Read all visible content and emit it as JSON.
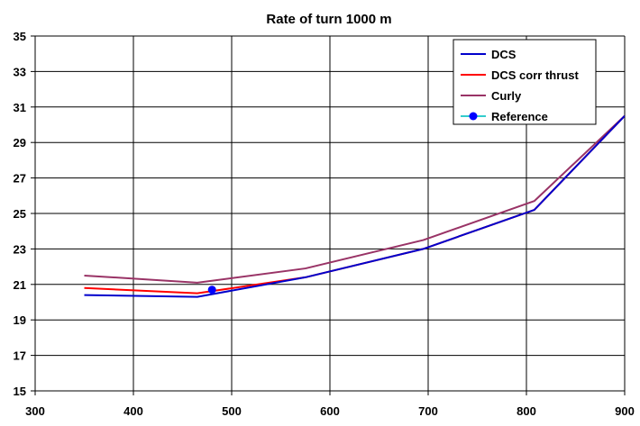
{
  "chart_data": {
    "type": "line",
    "title": "Rate of turn 1000 m",
    "xlabel": "",
    "ylabel": "",
    "xlim": [
      300,
      900
    ],
    "ylim": [
      15,
      35
    ],
    "x_ticks": [
      300,
      400,
      500,
      600,
      700,
      800,
      900
    ],
    "y_ticks": [
      15,
      17,
      19,
      21,
      23,
      25,
      27,
      29,
      31,
      33,
      35
    ],
    "grid": true,
    "legend_position": "top-right",
    "series": [
      {
        "name": "DCS",
        "color": "#0000cc",
        "marker": "none",
        "points": [
          [
            350,
            20.4
          ],
          [
            465,
            20.3
          ],
          [
            575,
            21.4
          ],
          [
            695,
            23.0
          ],
          [
            808,
            25.2
          ],
          [
            900,
            30.5
          ]
        ]
      },
      {
        "name": "DCS corr thrust",
        "color": "#ff0000",
        "marker": "none",
        "points": [
          [
            350,
            20.8
          ],
          [
            465,
            20.5
          ],
          [
            575,
            21.4
          ],
          [
            695,
            23.0
          ],
          [
            808,
            25.2
          ],
          [
            900,
            30.5
          ]
        ]
      },
      {
        "name": "Curly",
        "color": "#993366",
        "marker": "none",
        "points": [
          [
            350,
            21.5
          ],
          [
            465,
            21.1
          ],
          [
            575,
            21.9
          ],
          [
            695,
            23.5
          ],
          [
            808,
            25.7
          ],
          [
            900,
            30.5
          ]
        ]
      },
      {
        "name": "Reference",
        "color": "#0000ff",
        "line_color": "#33cccc",
        "marker": "circle",
        "points": [
          [
            480,
            20.7
          ]
        ]
      }
    ]
  }
}
